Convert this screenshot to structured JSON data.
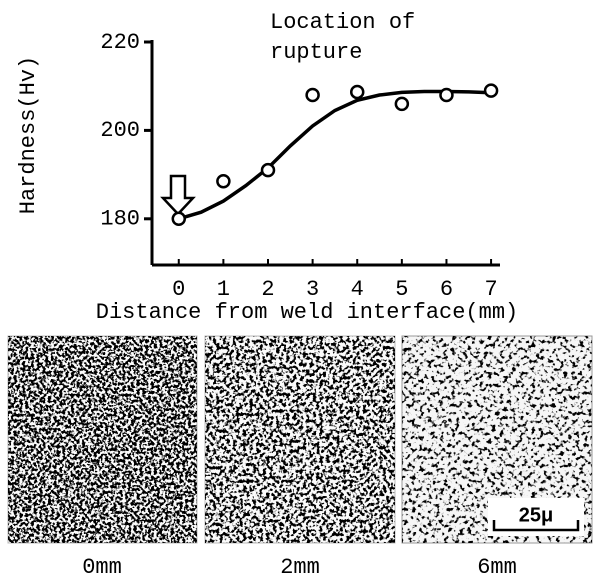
{
  "chart_data": {
    "type": "scatter",
    "annotation": [
      "Location of",
      "rupture"
    ],
    "x_label": "Distance from weld interface(mm)",
    "y_label": "Hardness(Hv)",
    "x": [
      0,
      1,
      2,
      3,
      4,
      5,
      6,
      7
    ],
    "values": [
      180,
      188.5,
      191,
      208,
      208.7,
      206,
      208,
      209
    ],
    "color": "#000000",
    "fit": {
      "x": [
        0,
        0.5,
        1,
        1.5,
        2,
        2.5,
        3,
        3.5,
        4,
        4.5,
        5,
        5.5,
        6,
        6.5,
        7
      ],
      "values": [
        180,
        181.5,
        184,
        187.5,
        191.5,
        196.5,
        201,
        204.5,
        206.8,
        208,
        208.6,
        208.8,
        208.8,
        208.7,
        208.5
      ]
    },
    "xlim": [
      -0.6,
      7.2
    ],
    "ylim": [
      170,
      220
    ],
    "xticks": [
      0,
      1,
      2,
      3,
      4,
      5,
      6,
      7
    ],
    "yticks": [
      180,
      200,
      220
    ]
  },
  "micrographs": [
    {
      "label": "0mm"
    },
    {
      "label": "2mm"
    },
    {
      "label": "6mm"
    }
  ],
  "scale_bar": "25μ"
}
